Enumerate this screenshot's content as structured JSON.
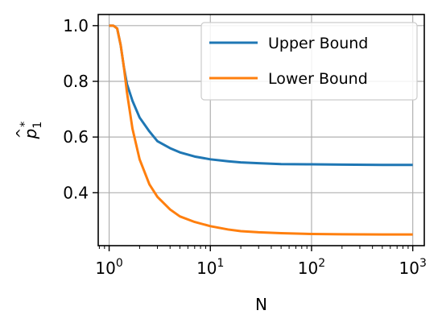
{
  "chart_data": {
    "type": "line",
    "title": "",
    "xlabel": "N",
    "ylabel_base": "p",
    "ylabel_sub": "1",
    "ylabel_sup": "*",
    "x_scale": "log",
    "xlim": [
      0.78,
      1300
    ],
    "ylim": [
      0.21,
      1.04
    ],
    "x_ticks": [
      {
        "value": 1,
        "base": "10",
        "exp": "0"
      },
      {
        "value": 10,
        "base": "10",
        "exp": "1"
      },
      {
        "value": 100,
        "base": "10",
        "exp": "2"
      },
      {
        "value": 1000,
        "base": "10",
        "exp": "3"
      }
    ],
    "y_ticks": [
      {
        "value": 0.4,
        "label": "0.4"
      },
      {
        "value": 0.6,
        "label": "0.6"
      },
      {
        "value": 0.8,
        "label": "0.8"
      },
      {
        "value": 1.0,
        "label": "1.0"
      }
    ],
    "grid": true,
    "legend_position": "top-right",
    "series": [
      {
        "name": "Upper Bound",
        "color": "#1f77b4",
        "points": [
          [
            1.0,
            1.0
          ],
          [
            1.1,
            1.0
          ],
          [
            1.2,
            0.99
          ],
          [
            1.3,
            0.93
          ],
          [
            1.4,
            0.85
          ],
          [
            1.5,
            0.79
          ],
          [
            1.7,
            0.73
          ],
          [
            2.0,
            0.67
          ],
          [
            2.5,
            0.62
          ],
          [
            3.0,
            0.585
          ],
          [
            4.0,
            0.56
          ],
          [
            5.0,
            0.545
          ],
          [
            7.0,
            0.53
          ],
          [
            10.0,
            0.52
          ],
          [
            15.0,
            0.513
          ],
          [
            20.0,
            0.509
          ],
          [
            30.0,
            0.506
          ],
          [
            50.0,
            0.503
          ],
          [
            100.0,
            0.502
          ],
          [
            200.0,
            0.501
          ],
          [
            500.0,
            0.5
          ],
          [
            1000.0,
            0.5
          ]
        ]
      },
      {
        "name": "Lower Bound",
        "color": "#ff7f0e",
        "points": [
          [
            1.0,
            1.0
          ],
          [
            1.1,
            1.0
          ],
          [
            1.2,
            0.99
          ],
          [
            1.3,
            0.93
          ],
          [
            1.4,
            0.85
          ],
          [
            1.5,
            0.76
          ],
          [
            1.7,
            0.63
          ],
          [
            2.0,
            0.52
          ],
          [
            2.5,
            0.43
          ],
          [
            3.0,
            0.385
          ],
          [
            4.0,
            0.34
          ],
          [
            5.0,
            0.315
          ],
          [
            7.0,
            0.295
          ],
          [
            10.0,
            0.28
          ],
          [
            15.0,
            0.268
          ],
          [
            20.0,
            0.262
          ],
          [
            30.0,
            0.258
          ],
          [
            50.0,
            0.255
          ],
          [
            100.0,
            0.252
          ],
          [
            200.0,
            0.251
          ],
          [
            500.0,
            0.25
          ],
          [
            1000.0,
            0.25
          ]
        ]
      }
    ]
  }
}
